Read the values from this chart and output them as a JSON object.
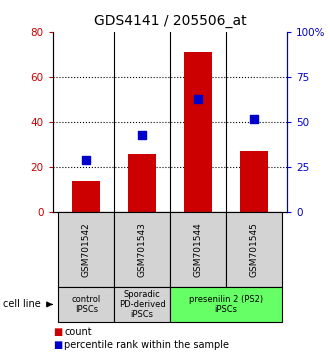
{
  "title": "GDS4141 / 205506_at",
  "samples": [
    "GSM701542",
    "GSM701543",
    "GSM701544",
    "GSM701545"
  ],
  "counts": [
    14,
    26,
    71,
    27
  ],
  "percentiles": [
    29,
    43,
    63,
    52
  ],
  "left_ylim": [
    0,
    80
  ],
  "right_ylim": [
    0,
    100
  ],
  "left_yticks": [
    0,
    20,
    40,
    60,
    80
  ],
  "right_yticks": [
    0,
    25,
    50,
    75,
    100
  ],
  "right_yticklabels": [
    "0",
    "25",
    "50",
    "75",
    "100%"
  ],
  "grid_values": [
    20,
    40,
    60
  ],
  "bar_color": "#cc0000",
  "dot_color": "#0000cc",
  "groups": [
    {
      "label": "control\nIPSCs",
      "indices": [
        0
      ],
      "color": "#d3d3d3"
    },
    {
      "label": "Sporadic\nPD-derived\niPSCs",
      "indices": [
        1
      ],
      "color": "#d3d3d3"
    },
    {
      "label": "presenilin 2 (PS2)\niPSCs",
      "indices": [
        2,
        3
      ],
      "color": "#66ff66"
    }
  ],
  "cell_line_label": "cell line",
  "legend_count_label": "count",
  "legend_percentile_label": "percentile rank within the sample",
  "bar_width": 0.5,
  "dot_size": 35,
  "title_fontsize": 10,
  "tick_fontsize": 7.5,
  "sample_box_color": "#d3d3d3",
  "sample_box_edge": "#000000"
}
